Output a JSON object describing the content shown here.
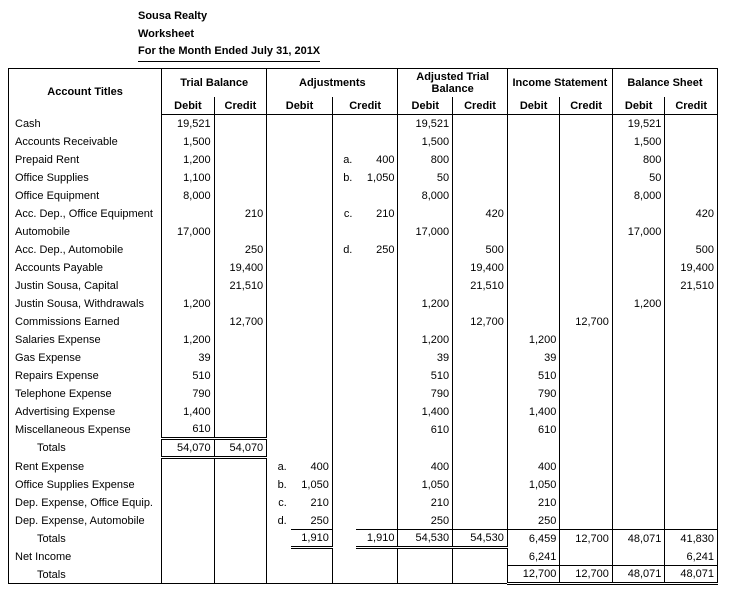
{
  "header": {
    "company": "Sousa Realty",
    "doc": "Worksheet",
    "period": "For the Month Ended July 31, 201X"
  },
  "sections": [
    "Trial Balance",
    "Adjustments",
    "Adjusted Trial Balance",
    "Income Statement",
    "Balance Sheet"
  ],
  "col_labels": {
    "acct": "Account Titles",
    "debit": "Debit",
    "credit": "Credit"
  },
  "col_widths": {
    "acct": 140,
    "tb_d": 48,
    "tb_c": 48,
    "adj_l1": 22,
    "adj_d": 38,
    "adj_l2": 22,
    "adj_c": 38,
    "atb_d": 48,
    "atb_c": 48,
    "is_d": 48,
    "is_c": 48,
    "bs_d": 48,
    "bs_c": 48
  },
  "rows": [
    {
      "label": "Cash",
      "tb_d": "19,521",
      "atb_d": "19,521",
      "bs_d": "19,521"
    },
    {
      "label": "Accounts Receivable",
      "tb_d": "1,500",
      "atb_d": "1,500",
      "bs_d": "1,500"
    },
    {
      "label": "Prepaid Rent",
      "tb_d": "1,200",
      "adj_c_l": "a.",
      "adj_c": "400",
      "atb_d": "800",
      "bs_d": "800"
    },
    {
      "label": "Office Supplies",
      "tb_d": "1,100",
      "adj_c_l": "b.",
      "adj_c": "1,050",
      "atb_d": "50",
      "bs_d": "50"
    },
    {
      "label": "Office Equipment",
      "tb_d": "8,000",
      "atb_d": "8,000",
      "bs_d": "8,000"
    },
    {
      "label": "Acc. Dep., Office Equipment",
      "tb_c": "210",
      "adj_c_l": "c.",
      "adj_c": "210",
      "atb_c": "420",
      "bs_c": "420"
    },
    {
      "label": "Automobile",
      "tb_d": "17,000",
      "atb_d": "17,000",
      "bs_d": "17,000"
    },
    {
      "label": "Acc. Dep., Automobile",
      "tb_c": "250",
      "adj_c_l": "d.",
      "adj_c": "250",
      "atb_c": "500",
      "bs_c": "500"
    },
    {
      "label": "Accounts Payable",
      "tb_c": "19,400",
      "atb_c": "19,400",
      "bs_c": "19,400"
    },
    {
      "label": "Justin Sousa, Capital",
      "tb_c": "21,510",
      "atb_c": "21,510",
      "bs_c": "21,510"
    },
    {
      "label": "Justin Sousa, Withdrawals",
      "tb_d": "1,200",
      "atb_d": "1,200",
      "bs_d": "1,200"
    },
    {
      "label": "Commissions Earned",
      "tb_c": "12,700",
      "atb_c": "12,700",
      "is_c": "12,700"
    },
    {
      "label": "Salaries Expense",
      "tb_d": "1,200",
      "atb_d": "1,200",
      "is_d": "1,200"
    },
    {
      "label": "Gas Expense",
      "tb_d": "39",
      "atb_d": "39",
      "is_d": "39"
    },
    {
      "label": "Repairs Expense",
      "tb_d": "510",
      "atb_d": "510",
      "is_d": "510"
    },
    {
      "label": "Telephone Expense",
      "tb_d": "790",
      "atb_d": "790",
      "is_d": "790"
    },
    {
      "label": "Advertising Expense",
      "tb_d": "1,400",
      "atb_d": "1,400",
      "is_d": "1,400"
    },
    {
      "label": "Miscellaneous Expense",
      "tb_d": "610",
      "atb_d": "610",
      "is_d": "610"
    }
  ],
  "totals1": {
    "label": "Totals",
    "tb_d": "54,070",
    "tb_c": "54,070"
  },
  "adj_rows": [
    {
      "label": "Rent Expense",
      "adj_d_l": "a.",
      "adj_d": "400",
      "atb_d": "400",
      "is_d": "400"
    },
    {
      "label": "Office Supplies Expense",
      "adj_d_l": "b.",
      "adj_d": "1,050",
      "atb_d": "1,050",
      "is_d": "1,050"
    },
    {
      "label": "Dep. Expense, Office Equip.",
      "adj_d_l": "c.",
      "adj_d": "210",
      "atb_d": "210",
      "is_d": "210"
    },
    {
      "label": "Dep. Expense, Automobile",
      "adj_d_l": "d.",
      "adj_d": "250",
      "atb_d": "250",
      "is_d": "250"
    }
  ],
  "totals2": {
    "label": "Totals",
    "adj_d": "1,910",
    "adj_c": "1,910",
    "atb_d": "54,530",
    "atb_c": "54,530",
    "is_d": "6,459",
    "is_c": "12,700",
    "bs_d": "48,071",
    "bs_c": "41,830"
  },
  "net_income": {
    "label": "Net Income",
    "is_d": "6,241",
    "bs_c": "6,241"
  },
  "totals3": {
    "label": "Totals",
    "is_d": "12,700",
    "is_c": "12,700",
    "bs_d": "48,071",
    "bs_c": "48,071"
  },
  "style": {
    "font_family": "Arial, Helvetica, sans-serif",
    "font_size_pt": 8,
    "text_color": "#000000",
    "background": "#ffffff",
    "border_color": "#000000"
  }
}
